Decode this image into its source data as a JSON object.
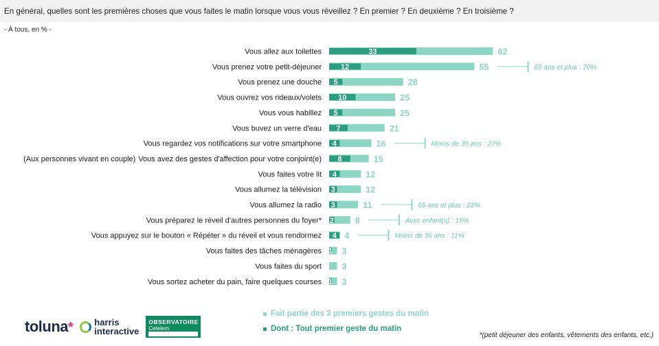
{
  "header": {
    "question": "En général, quelles sont les premières choses que vous faites le matin lorsque vous vous réveillez ? En premier ? En deuxième ? En troisième ?",
    "base": "- À tous, en % -"
  },
  "chart_data": {
    "type": "bar",
    "orientation": "horizontal",
    "categories": [
      "Vous allez aux toilettes",
      "Vous prenez votre petit-déjeuner",
      "Vous prenez une douche",
      "Vous ouvrez vos rideaux/volets",
      "Vous vous habillez",
      "Vous buvez un verre d'eau",
      "Vous regardez vos notifications sur votre smartphone",
      "Vous avez des gestes d'affection pour votre conjoint(e)",
      "Vous faites votre lit",
      "Vous allumez la télévision",
      "Vous allumez la radio",
      "Vous préparez le réveil d'autres personnes du foyer*",
      "Vous appuyez sur le bouton « Répéter » du réveil et vous rendormez",
      "Vous faites des tâches ménagères",
      "Vous faites du sport",
      "Vous sortez acheter du pain, faire quelques courses"
    ],
    "category_prefixes": [
      "",
      "",
      "",
      "",
      "",
      "",
      "",
      "(Aux personnes vivant en couple)",
      "",
      "",
      "",
      "",
      "",
      "",
      "",
      ""
    ],
    "series": [
      {
        "name": "Fait partie des 3 premiers gestes du matin",
        "color": "#8dd6c4",
        "values": [
          62,
          55,
          28,
          25,
          25,
          21,
          16,
          15,
          12,
          12,
          11,
          8,
          4,
          3,
          3,
          3
        ]
      },
      {
        "name": "Dont : Tout premier geste du matin",
        "color": "#2b9e7f",
        "values": [
          33,
          12,
          5,
          10,
          5,
          7,
          4,
          8,
          4,
          3,
          3,
          2,
          4,
          1,
          null,
          1
        ]
      }
    ],
    "annotations": [
      {
        "category_index": 1,
        "text": "65 ans et plus : 70%"
      },
      {
        "category_index": 6,
        "text": "Moins de 35 ans : 27%"
      },
      {
        "category_index": 10,
        "text": "65 ans et plus : 22%"
      },
      {
        "category_index": 11,
        "text": "Avec enfant(s) : 15%"
      },
      {
        "category_index": 12,
        "text": "Moins de 35 ans : 11%"
      }
    ],
    "xlim": [
      0,
      100
    ]
  },
  "legend": {
    "items": [
      {
        "label": "Fait partie des 3 premiers gestes du matin",
        "color": "#8dd6c4"
      },
      {
        "label": "Dont : Tout premier geste du matin",
        "color": "#2b9e7f"
      }
    ]
  },
  "footnote": "*(petit déjeuner des enfants, vêtements des enfants, etc.)",
  "logos": {
    "toluna": "toluna",
    "harris_line1": "harris",
    "harris_line2": "interactive",
    "observatoire_line1": "OBSERVATOIRE",
    "observatoire_line2": "Cetelem"
  }
}
